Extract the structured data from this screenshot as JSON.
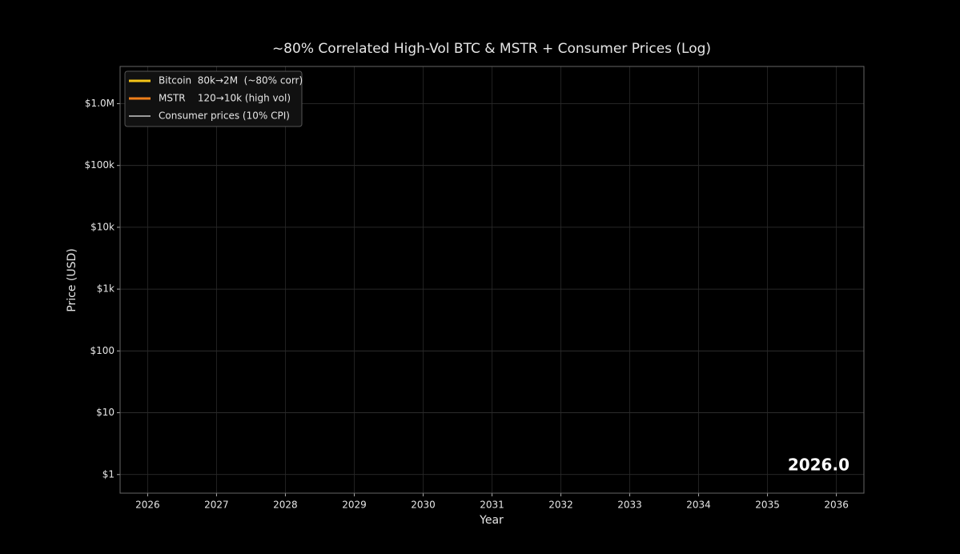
{
  "chart_data": {
    "type": "line",
    "title": "~80% Correlated High-Vol BTC & MSTR + Consumer Prices (Log)",
    "x_label": "Year",
    "y_label": "Price (USD)",
    "annotation": "2026.0",
    "x": [],
    "series": [
      {
        "name": "Bitcoin  80k→2M  (~80% corr)",
        "color": "#f5c518",
        "values": []
      },
      {
        "name": "MSTR    120→10k (high vol)",
        "color": "#f07f1a",
        "values": []
      },
      {
        "name": "Consumer prices (10% CPI)",
        "color": "#9a9a9a",
        "values": []
      }
    ],
    "xlim": [
      2025.6,
      2036.4
    ],
    "xticks": [
      2026,
      2027,
      2028,
      2029,
      2030,
      2031,
      2032,
      2033,
      2034,
      2035,
      2036
    ],
    "ylim": [
      0.5,
      4000000
    ],
    "yticks": [
      {
        "value": 1,
        "label": "$1"
      },
      {
        "value": 10,
        "label": "$10"
      },
      {
        "value": 100,
        "label": "$100"
      },
      {
        "value": 1000,
        "label": "$1k"
      },
      {
        "value": 10000,
        "label": "$10k"
      },
      {
        "value": 100000,
        "label": "$100k"
      },
      {
        "value": 1000000,
        "label": "$1.0M"
      }
    ],
    "log_y": true,
    "grid": true,
    "legend": "upper left"
  }
}
